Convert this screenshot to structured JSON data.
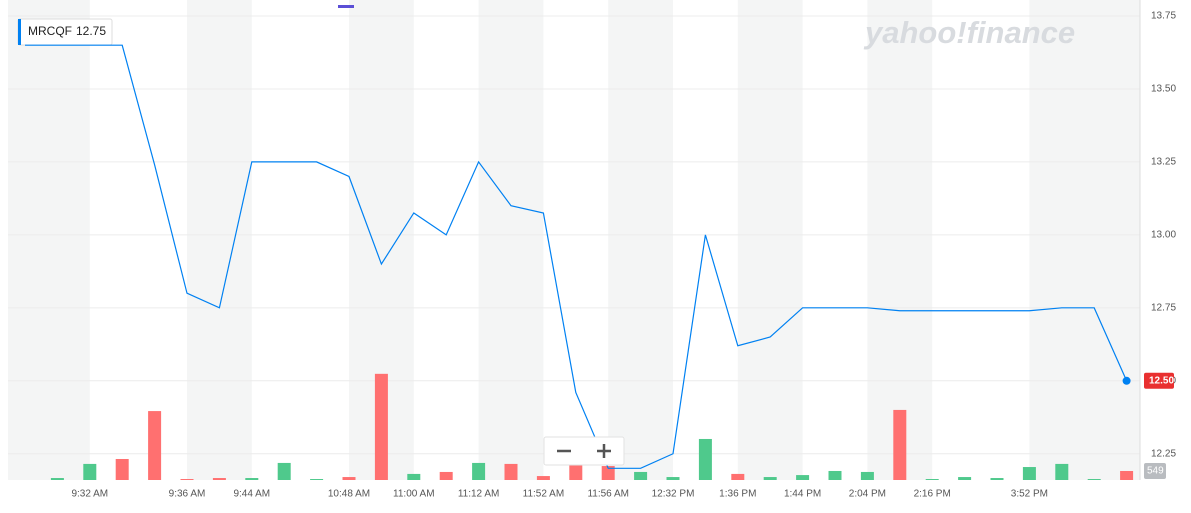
{
  "chart_data": {
    "type": "line",
    "watermark": "yahoo!finance",
    "symbol_price": 12.75,
    "price_marker": {
      "value": 12.5,
      "label": "12.50"
    },
    "volume_marker": 549,
    "categories": [
      null,
      null,
      "9:32 AM",
      null,
      null,
      "9:36 AM",
      null,
      "9:44 AM",
      null,
      null,
      "10:48 AM",
      null,
      "11:00 AM",
      null,
      "11:12 AM",
      null,
      "11:52 AM",
      null,
      "11:56 AM",
      null,
      "12:32 PM",
      null,
      "1:36 PM",
      null,
      "1:44 PM",
      null,
      "2:04 PM",
      null,
      "2:16 PM",
      null,
      null,
      "3:52 PM",
      null,
      null,
      null
    ],
    "series": [
      {
        "name": "MRCQF",
        "color": "#0081f2",
        "values": [
          13.65,
          13.65,
          13.65,
          13.65,
          13.24,
          12.8,
          12.75,
          13.25,
          13.25,
          13.25,
          13.2,
          12.9,
          13.075,
          13.0,
          13.25,
          13.1,
          13.075,
          12.46,
          12.2,
          12.2,
          12.25,
          13.0,
          12.62,
          12.65,
          12.75,
          12.75,
          12.75,
          12.74,
          12.74,
          12.74,
          12.74,
          12.74,
          12.75,
          12.75,
          12.5
        ]
      }
    ],
    "volume": {
      "values": [
        0,
        120,
        980,
        1280,
        4200,
        60,
        120,
        120,
        1040,
        60,
        180,
        6470,
        370,
        490,
        1040,
        980,
        240,
        1650,
        850,
        490,
        180,
        2500,
        370,
        180,
        300,
        550,
        490,
        4270,
        60,
        180,
        120,
        790,
        980,
        60,
        549
      ],
      "colors": [
        "#4fc98c",
        "#4fc98c",
        "#4fc98c",
        "#ff7070",
        "#ff7070",
        "#ff7070",
        "#ff7070",
        "#4fc98c",
        "#4fc98c",
        "#4fc98c",
        "#ff7070",
        "#ff7070",
        "#4fc98c",
        "#ff7070",
        "#4fc98c",
        "#ff7070",
        "#ff7070",
        "#ff7070",
        "#ff7070",
        "#4fc98c",
        "#4fc98c",
        "#4fc98c",
        "#ff7070",
        "#4fc98c",
        "#4fc98c",
        "#4fc98c",
        "#4fc98c",
        "#ff7070",
        "#4fc98c",
        "#4fc98c",
        "#4fc98c",
        "#4fc98c",
        "#4fc98c",
        "#4fc98c",
        "#ff7070"
      ]
    },
    "volume_ylim": [
      0,
      7800
    ],
    "ylim": [
      12.16,
      13.78
    ],
    "yticks": [
      12.25,
      {
        "value": 12.5,
        "label": "12.50"
      },
      12.75,
      {
        "value": 13.0,
        "label": "13.00"
      },
      13.25,
      {
        "value": 13.5,
        "label": "13.50"
      },
      13.75
    ],
    "grid": true
  }
}
